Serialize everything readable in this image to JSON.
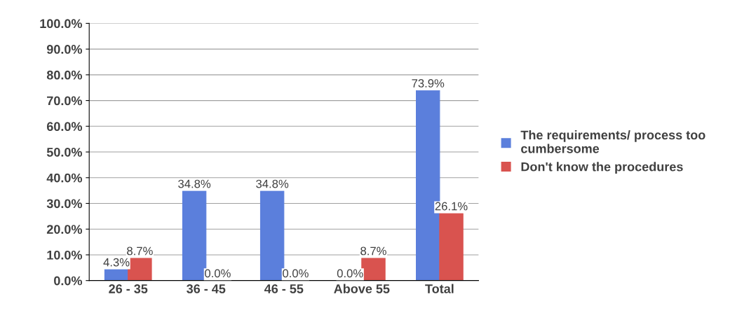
{
  "chart_data": {
    "type": "bar",
    "categories": [
      "26 - 35",
      "36 - 45",
      "46 - 55",
      "Above 55",
      "Total"
    ],
    "series": [
      {
        "name": "The requirements/ process too cumbersome",
        "color": "#5b7fdc",
        "values": [
          4.3,
          34.8,
          34.8,
          0.0,
          73.9
        ],
        "value_labels": [
          "4.3%",
          "34.8%",
          "34.8%",
          "0.0%",
          "73.9%"
        ]
      },
      {
        "name": "Don't know the procedures",
        "color": "#d9534f",
        "values": [
          8.7,
          0.0,
          0.0,
          8.7,
          26.1
        ],
        "value_labels": [
          "8.7%",
          "0.0%",
          "0.0%",
          "8.7%",
          "26.1%"
        ]
      }
    ],
    "ylim": [
      0,
      100
    ],
    "yticks": [
      {
        "value": 0,
        "label": "0.0%"
      },
      {
        "value": 10,
        "label": "10.0%"
      },
      {
        "value": 20,
        "label": "20.0%"
      },
      {
        "value": 30,
        "label": "30.0%"
      },
      {
        "value": 40,
        "label": "40.0%"
      },
      {
        "value": 50,
        "label": "50.0%"
      },
      {
        "value": 60,
        "label": "60.0%"
      },
      {
        "value": 70,
        "label": "70.0%"
      },
      {
        "value": 80,
        "label": "80.0%"
      },
      {
        "value": 90,
        "label": "90.0%"
      },
      {
        "value": 100,
        "label": "100.0%"
      }
    ],
    "grid": "y",
    "legend": "right"
  }
}
